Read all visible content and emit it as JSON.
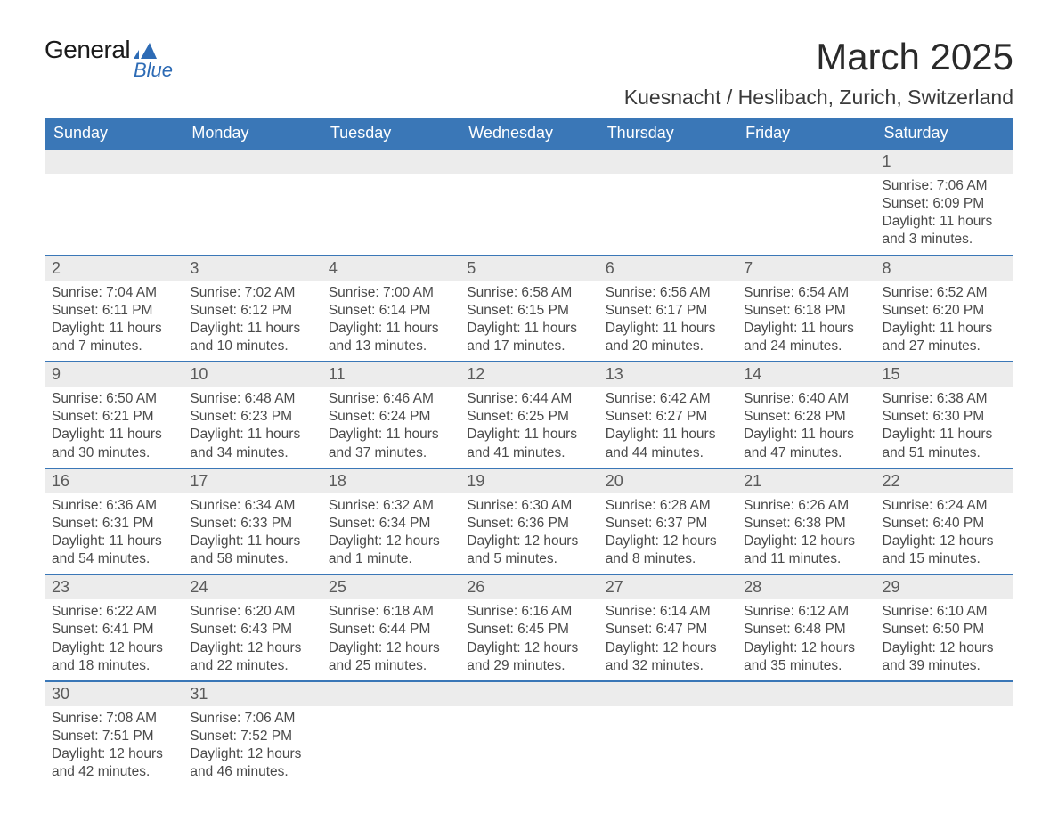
{
  "brand": {
    "main": "General",
    "sub": "Blue",
    "icon_color": "#2d6bb5"
  },
  "title": "March 2025",
  "location": "Kuesnacht / Heslibach, Zurich, Switzerland",
  "colors": {
    "header_bg": "#3a77b7",
    "header_text": "#ffffff",
    "daynum_bg": "#ececec",
    "border": "#3a77b7",
    "text": "#4a4a4a"
  },
  "weekdays": [
    "Sunday",
    "Monday",
    "Tuesday",
    "Wednesday",
    "Thursday",
    "Friday",
    "Saturday"
  ],
  "weeks": [
    [
      null,
      null,
      null,
      null,
      null,
      null,
      {
        "n": "1",
        "sr": "7:06 AM",
        "ss": "6:09 PM",
        "dl": "11 hours and 3 minutes."
      }
    ],
    [
      {
        "n": "2",
        "sr": "7:04 AM",
        "ss": "6:11 PM",
        "dl": "11 hours and 7 minutes."
      },
      {
        "n": "3",
        "sr": "7:02 AM",
        "ss": "6:12 PM",
        "dl": "11 hours and 10 minutes."
      },
      {
        "n": "4",
        "sr": "7:00 AM",
        "ss": "6:14 PM",
        "dl": "11 hours and 13 minutes."
      },
      {
        "n": "5",
        "sr": "6:58 AM",
        "ss": "6:15 PM",
        "dl": "11 hours and 17 minutes."
      },
      {
        "n": "6",
        "sr": "6:56 AM",
        "ss": "6:17 PM",
        "dl": "11 hours and 20 minutes."
      },
      {
        "n": "7",
        "sr": "6:54 AM",
        "ss": "6:18 PM",
        "dl": "11 hours and 24 minutes."
      },
      {
        "n": "8",
        "sr": "6:52 AM",
        "ss": "6:20 PM",
        "dl": "11 hours and 27 minutes."
      }
    ],
    [
      {
        "n": "9",
        "sr": "6:50 AM",
        "ss": "6:21 PM",
        "dl": "11 hours and 30 minutes."
      },
      {
        "n": "10",
        "sr": "6:48 AM",
        "ss": "6:23 PM",
        "dl": "11 hours and 34 minutes."
      },
      {
        "n": "11",
        "sr": "6:46 AM",
        "ss": "6:24 PM",
        "dl": "11 hours and 37 minutes."
      },
      {
        "n": "12",
        "sr": "6:44 AM",
        "ss": "6:25 PM",
        "dl": "11 hours and 41 minutes."
      },
      {
        "n": "13",
        "sr": "6:42 AM",
        "ss": "6:27 PM",
        "dl": "11 hours and 44 minutes."
      },
      {
        "n": "14",
        "sr": "6:40 AM",
        "ss": "6:28 PM",
        "dl": "11 hours and 47 minutes."
      },
      {
        "n": "15",
        "sr": "6:38 AM",
        "ss": "6:30 PM",
        "dl": "11 hours and 51 minutes."
      }
    ],
    [
      {
        "n": "16",
        "sr": "6:36 AM",
        "ss": "6:31 PM",
        "dl": "11 hours and 54 minutes."
      },
      {
        "n": "17",
        "sr": "6:34 AM",
        "ss": "6:33 PM",
        "dl": "11 hours and 58 minutes."
      },
      {
        "n": "18",
        "sr": "6:32 AM",
        "ss": "6:34 PM",
        "dl": "12 hours and 1 minute."
      },
      {
        "n": "19",
        "sr": "6:30 AM",
        "ss": "6:36 PM",
        "dl": "12 hours and 5 minutes."
      },
      {
        "n": "20",
        "sr": "6:28 AM",
        "ss": "6:37 PM",
        "dl": "12 hours and 8 minutes."
      },
      {
        "n": "21",
        "sr": "6:26 AM",
        "ss": "6:38 PM",
        "dl": "12 hours and 11 minutes."
      },
      {
        "n": "22",
        "sr": "6:24 AM",
        "ss": "6:40 PM",
        "dl": "12 hours and 15 minutes."
      }
    ],
    [
      {
        "n": "23",
        "sr": "6:22 AM",
        "ss": "6:41 PM",
        "dl": "12 hours and 18 minutes."
      },
      {
        "n": "24",
        "sr": "6:20 AM",
        "ss": "6:43 PM",
        "dl": "12 hours and 22 minutes."
      },
      {
        "n": "25",
        "sr": "6:18 AM",
        "ss": "6:44 PM",
        "dl": "12 hours and 25 minutes."
      },
      {
        "n": "26",
        "sr": "6:16 AM",
        "ss": "6:45 PM",
        "dl": "12 hours and 29 minutes."
      },
      {
        "n": "27",
        "sr": "6:14 AM",
        "ss": "6:47 PM",
        "dl": "12 hours and 32 minutes."
      },
      {
        "n": "28",
        "sr": "6:12 AM",
        "ss": "6:48 PM",
        "dl": "12 hours and 35 minutes."
      },
      {
        "n": "29",
        "sr": "6:10 AM",
        "ss": "6:50 PM",
        "dl": "12 hours and 39 minutes."
      }
    ],
    [
      {
        "n": "30",
        "sr": "7:08 AM",
        "ss": "7:51 PM",
        "dl": "12 hours and 42 minutes."
      },
      {
        "n": "31",
        "sr": "7:06 AM",
        "ss": "7:52 PM",
        "dl": "12 hours and 46 minutes."
      },
      null,
      null,
      null,
      null,
      null
    ]
  ],
  "labels": {
    "sunrise": "Sunrise:",
    "sunset": "Sunset:",
    "daylight": "Daylight:"
  }
}
